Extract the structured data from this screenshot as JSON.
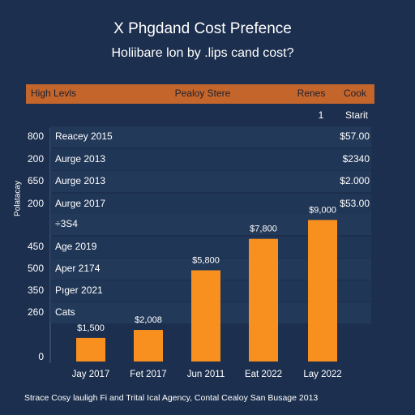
{
  "header": {
    "title": "X Phgdand Cost Prefence",
    "subtitle": "Holiibare lon by .lips cand cost?"
  },
  "table": {
    "columns": [
      "High Levls",
      "Pealoy Stere",
      "Renes",
      "Cook"
    ],
    "subheader": [
      "1",
      "Starit"
    ],
    "rows": [
      {
        "num": "800",
        "label": "Reacey 2015",
        "value": "$57.00"
      },
      {
        "num": "200",
        "label": "Aurge 2013",
        "value": "$2340"
      },
      {
        "num": "650",
        "label": "Aurge 2013",
        "value": "$2.000"
      },
      {
        "num": "200",
        "label": "Aurge 2017",
        "value": "$53.00"
      },
      {
        "label": "÷3S4"
      },
      {
        "num": "450",
        "label": "Age 2019"
      },
      {
        "num": "500",
        "label": "Aper 2174"
      },
      {
        "num": "350",
        "label": "Pıger 2021"
      },
      {
        "num": "260",
        "label": "Cats"
      },
      {
        "num": "0"
      }
    ]
  },
  "chart_data": {
    "type": "bar",
    "y_label": "Polatacay",
    "categories": [
      "Jay 2017",
      "Fet 2017",
      "Jun 2011",
      "Eat 2022",
      "Lay 2022"
    ],
    "values": [
      1500,
      2008,
      5800,
      7800,
      9000
    ],
    "value_labels": [
      "$1,500",
      "$2,008",
      "$5,800",
      "$7,800",
      "$9,000"
    ],
    "color": "#f7901e",
    "ylim": [
      0,
      10000
    ]
  },
  "source": "Strace Cosy lauligh Fi and Trital Ical Agency, Contal Cealoy San Busage 2013"
}
